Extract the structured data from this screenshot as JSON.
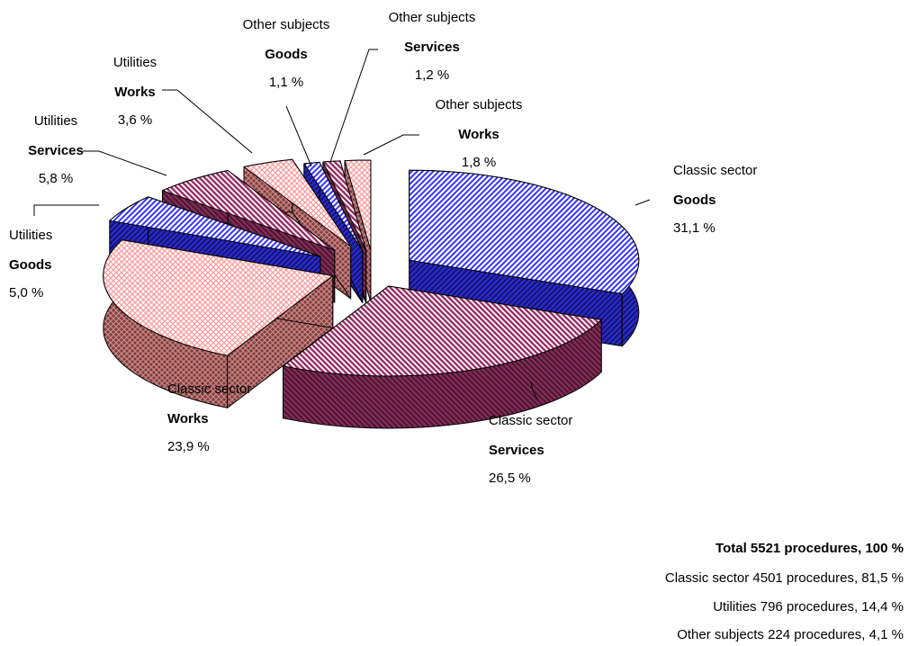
{
  "chart_data": {
    "type": "pie",
    "groups": [
      "Classic sector",
      "Classic sector",
      "Classic sector",
      "Utilities",
      "Utilities",
      "Utilities",
      "Other subjects",
      "Other subjects",
      "Other subjects"
    ],
    "categories": [
      "Goods",
      "Services",
      "Works",
      "Goods",
      "Services",
      "Works",
      "Goods",
      "Services",
      "Works"
    ],
    "values": [
      31.1,
      26.5,
      23.9,
      5.0,
      5.8,
      3.6,
      1.1,
      1.2,
      1.8
    ],
    "value_labels": [
      "31,1 %",
      "26,5 %",
      "23,9 %",
      "5,0 %",
      "5,8 %",
      "3,6 %",
      "1,1 %",
      "1,2 %",
      "1,8 %"
    ],
    "colors": [
      "#3333ff",
      "#993366",
      "#ff9999",
      "#3333ff",
      "#993366",
      "#ff9999",
      "#3333ff",
      "#993366",
      "#ff9999"
    ],
    "summary": [
      "Total 5521 procedures, 100 %",
      "Classic sector 4501 procedures, 81,5 %",
      "Utilities 796 procedures, 14,4 %",
      "Other subjects 224 procedures, 4,1 %"
    ]
  }
}
